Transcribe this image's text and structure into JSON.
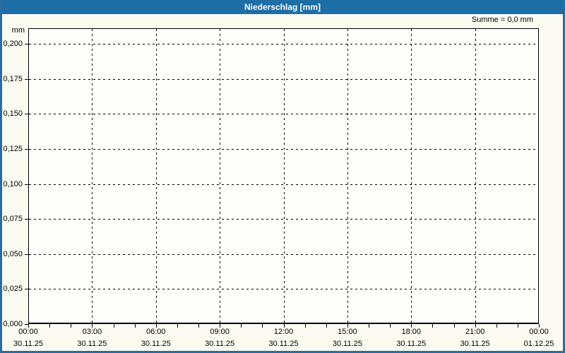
{
  "window": {
    "title": "Niederschlag [mm]"
  },
  "summary": {
    "text": "Summe = 0,0 mm"
  },
  "colors": {
    "titlebar": "#1d6da6",
    "frame": "#2a6d9e",
    "page_bg": "#fbfbf2",
    "plot_bg": "#fefefc",
    "grid": "#000000",
    "text": "#000000"
  },
  "chart_data": {
    "type": "bar",
    "title": "Niederschlag [mm]",
    "xlabel": "",
    "ylabel": "mm",
    "ylim": [
      0,
      0.2
    ],
    "y_tick_step": 0.025,
    "grid": "dashed",
    "legend": "none",
    "summe_label": "Summe = 0,0 mm",
    "y_ticks": [
      {
        "value": 0.2,
        "label": "0,200"
      },
      {
        "value": 0.175,
        "label": "0,175"
      },
      {
        "value": 0.15,
        "label": "0,150"
      },
      {
        "value": 0.125,
        "label": "0,125"
      },
      {
        "value": 0.1,
        "label": "0,100"
      },
      {
        "value": 0.075,
        "label": "0,075"
      },
      {
        "value": 0.05,
        "label": "0,050"
      },
      {
        "value": 0.025,
        "label": "0,025"
      },
      {
        "value": 0.0,
        "label": "0,000"
      }
    ],
    "x_ticks": [
      {
        "time": "00:00",
        "date": "30.11.25"
      },
      {
        "time": "03:00",
        "date": "30.11.25"
      },
      {
        "time": "06:00",
        "date": "30.11.25"
      },
      {
        "time": "09:00",
        "date": "30.11.25"
      },
      {
        "time": "12:00",
        "date": "30.11.25"
      },
      {
        "time": "15:00",
        "date": "30.11.25"
      },
      {
        "time": "18:00",
        "date": "30.11.25"
      },
      {
        "time": "21:00",
        "date": "30.11.25"
      },
      {
        "time": "00:00",
        "date": "01.12.25"
      }
    ],
    "minor_x_tick_interval_hours": 1,
    "x_range_hours": 24,
    "series": [
      {
        "name": "Niederschlag",
        "values": [],
        "total_mm": "0,0"
      }
    ]
  }
}
